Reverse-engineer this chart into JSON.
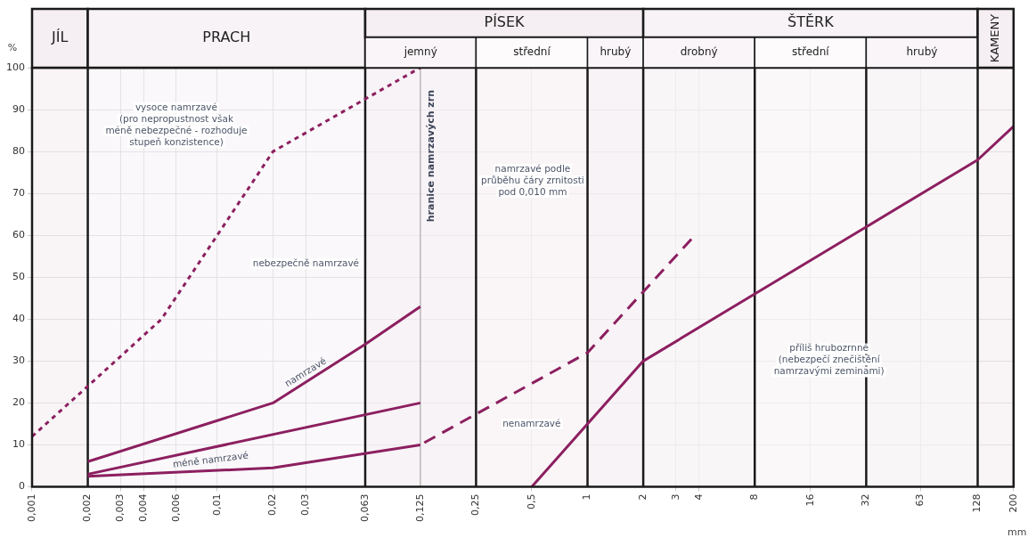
{
  "chart_data": {
    "type": "line",
    "ylabel": "%",
    "xlabel": "mm",
    "log": "x",
    "grid": true,
    "marker": "none",
    "xlim": [
      0.001,
      200
    ],
    "ylim": [
      0,
      100
    ],
    "xticks": [
      {
        "value": 0.001,
        "label": "0,001"
      },
      {
        "value": 0.002,
        "label": "0,002"
      },
      {
        "value": 0.003,
        "label": "0,003"
      },
      {
        "value": 0.004,
        "label": "0,004"
      },
      {
        "value": 0.006,
        "label": "0,006"
      },
      {
        "value": 0.01,
        "label": "0,01"
      },
      {
        "value": 0.02,
        "label": "0,02"
      },
      {
        "value": 0.03,
        "label": "0,03"
      },
      {
        "value": 0.063,
        "label": "0,063"
      },
      {
        "value": 0.125,
        "label": "0,125"
      },
      {
        "value": 0.25,
        "label": "0,25"
      },
      {
        "value": 0.5,
        "label": "0,5"
      },
      1,
      2,
      3,
      4,
      8,
      16,
      32,
      63,
      128,
      200
    ],
    "yticks": [
      0,
      10,
      20,
      30,
      40,
      50,
      60,
      70,
      80,
      90,
      100
    ],
    "series": [
      {
        "color": "#8c1f60",
        "line_style": "dotted",
        "x": [
          0.001,
          0.002,
          0.005,
          0.02,
          0.125
        ],
        "values": [
          12,
          24,
          40,
          80,
          100
        ]
      },
      {
        "color": "#8c1f60",
        "line_style": "solid",
        "x": [
          0.002,
          0.02,
          0.063,
          0.125
        ],
        "values": [
          6,
          20,
          34,
          43
        ]
      },
      {
        "color": "#8c1f60",
        "line_style": "solid",
        "x": [
          0.002,
          0.125
        ],
        "values": [
          3,
          20
        ]
      },
      {
        "color": "#8c1f60",
        "line_style": "solid",
        "x": [
          0.002,
          0.02,
          0.125
        ],
        "values": [
          2.5,
          4.5,
          10
        ]
      },
      {
        "color": "#8c1f60",
        "line_style": "dashed",
        "x": [
          0.125,
          1,
          3.8
        ],
        "values": [
          10,
          32,
          60
        ]
      },
      {
        "color": "#8c1f60",
        "line_style": "solid",
        "x": [
          0.5,
          2,
          8,
          32,
          128,
          200
        ],
        "values": [
          0,
          30,
          46,
          62,
          78,
          86
        ]
      }
    ],
    "bands": [
      {
        "axis": "x",
        "from": 0.001,
        "to": 0.002,
        "label": "JÍL",
        "color": "#f5eef2"
      },
      {
        "axis": "x",
        "from": 0.002,
        "to": 0.063,
        "label": "PRACH",
        "color": "#f7f3f6"
      },
      {
        "axis": "x",
        "from": 0.063,
        "to": 2,
        "label": "PÍSEK",
        "color": "#f5eef2"
      },
      {
        "axis": "x",
        "from": 0.063,
        "to": 0.25,
        "label": "jemný",
        "color": "#f9f5f8"
      },
      {
        "axis": "x",
        "from": 0.25,
        "to": 1,
        "label": "střední",
        "color": "#fdfbfc"
      },
      {
        "axis": "x",
        "from": 1,
        "to": 2,
        "label": "hrubý",
        "color": "#f9f5f8"
      },
      {
        "axis": "x",
        "from": 2,
        "to": 128,
        "label": "ŠTĚRK",
        "color": "#f7f3f6"
      },
      {
        "axis": "x",
        "from": 2,
        "to": 8,
        "label": "drobný",
        "color": "#f9f5f8"
      },
      {
        "axis": "x",
        "from": 8,
        "to": 32,
        "label": "střední",
        "color": "#fdfbfc"
      },
      {
        "axis": "x",
        "from": 32,
        "to": 128,
        "label": "hrubý",
        "color": "#f9f5f8"
      },
      {
        "axis": "x",
        "from": 128,
        "to": 200,
        "label": "KAMENY",
        "color": "#f5eef2"
      }
    ],
    "ref_lines": [
      {
        "axis": "x",
        "value": 0.125,
        "color": "#b8b8b8",
        "label": "hranice namrzavých zrn"
      }
    ],
    "annotations": [
      "vysoce namrzavé\n(pro nepropustnost však\nméně nebezpečné - rozhoduje\nstupeň konzistence)",
      "nebezpečně namrzavé",
      "namrzavé",
      "méně namrzavé",
      "nenamrzavé",
      "namrzavé podle\nprůběhu čáry zrnitosti\npod 0,010 mm",
      "příliš hrubozrnné\n(nebezpečí znečištění\nnamrzavými zeminami)"
    ]
  }
}
